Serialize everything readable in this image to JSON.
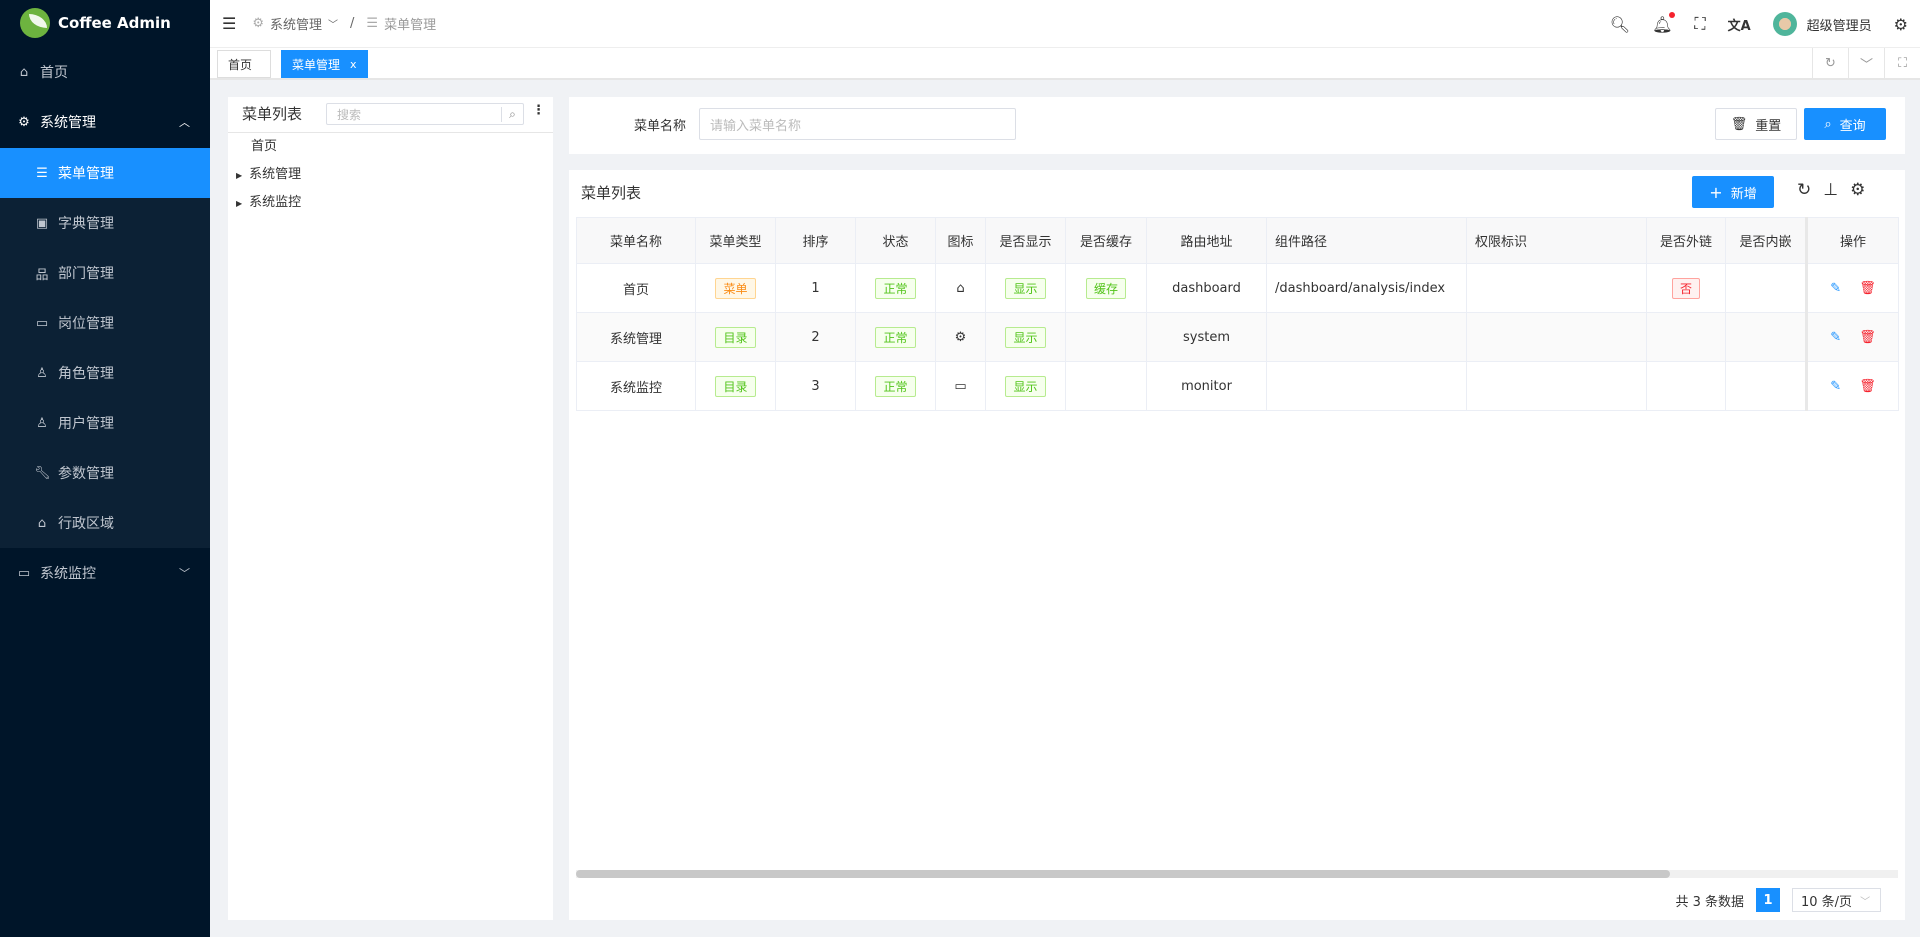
{
  "app": {
    "title": "Coffee Admin"
  },
  "colors": {
    "sidebar": "#001529",
    "accent": "#1890ff",
    "danger": "#f5222d",
    "success": "#52c41a",
    "warning": "#fa8c16"
  },
  "sidebar": {
    "items": [
      {
        "label": "首页",
        "icon": "home-icon"
      },
      {
        "label": "系统管理",
        "icon": "gear-icon",
        "expanded": true,
        "children": [
          {
            "label": "菜单管理",
            "icon": "list-icon",
            "active": true
          },
          {
            "label": "字典管理",
            "icon": "dictionary-icon"
          },
          {
            "label": "部门管理",
            "icon": "org-icon"
          },
          {
            "label": "岗位管理",
            "icon": "id-card-icon"
          },
          {
            "label": "角色管理",
            "icon": "users-icon"
          },
          {
            "label": "用户管理",
            "icon": "user-icon"
          },
          {
            "label": "参数管理",
            "icon": "wrench-icon"
          },
          {
            "label": "行政区域",
            "icon": "bank-icon"
          }
        ]
      },
      {
        "label": "系统监控",
        "icon": "monitor-icon",
        "expanded": false
      }
    ]
  },
  "header": {
    "breadcrumb": [
      "系统管理",
      "菜单管理"
    ],
    "username": "超级管理员",
    "has_notification": true
  },
  "tabs": [
    {
      "label": "首页"
    },
    {
      "label": "菜单管理",
      "active": true,
      "close": "x"
    }
  ],
  "tree": {
    "title": "菜单列表",
    "search_placeholder": "搜索",
    "nodes": [
      "首页",
      "系统管理",
      "系统监控"
    ]
  },
  "search": {
    "label": "菜单名称",
    "placeholder": "请输入菜单名称",
    "reset": "重置",
    "query": "查询"
  },
  "table": {
    "title": "菜单列表",
    "add": "新增",
    "columns": [
      "菜单名称",
      "菜单类型",
      "排序",
      "状态",
      "图标",
      "是否显示",
      "是否缓存",
      "路由地址",
      "组件路径",
      "权限标识",
      "是否外链",
      "是否内嵌",
      "操作"
    ],
    "rows": [
      {
        "name": "首页",
        "type": "菜单",
        "sort": "1",
        "status": "正常",
        "icon": "home-icon",
        "visible": "显示",
        "cache": "缓存",
        "path": "dashboard",
        "component": "/dashboard/analysis/index",
        "perm": "",
        "frame": "否",
        "embed": ""
      },
      {
        "name": "系统管理",
        "type": "目录",
        "sort": "2",
        "status": "正常",
        "icon": "gear-icon",
        "visible": "显示",
        "cache": "",
        "path": "system",
        "component": "",
        "perm": "",
        "frame": "",
        "embed": ""
      },
      {
        "name": "系统监控",
        "type": "目录",
        "sort": "3",
        "status": "正常",
        "icon": "monitor-icon",
        "visible": "显示",
        "cache": "",
        "path": "monitor",
        "component": "",
        "perm": "",
        "frame": "",
        "embed": ""
      }
    ]
  },
  "pagination": {
    "total": "共 3 条数据",
    "current": "1",
    "page_size": "10 条/页"
  }
}
